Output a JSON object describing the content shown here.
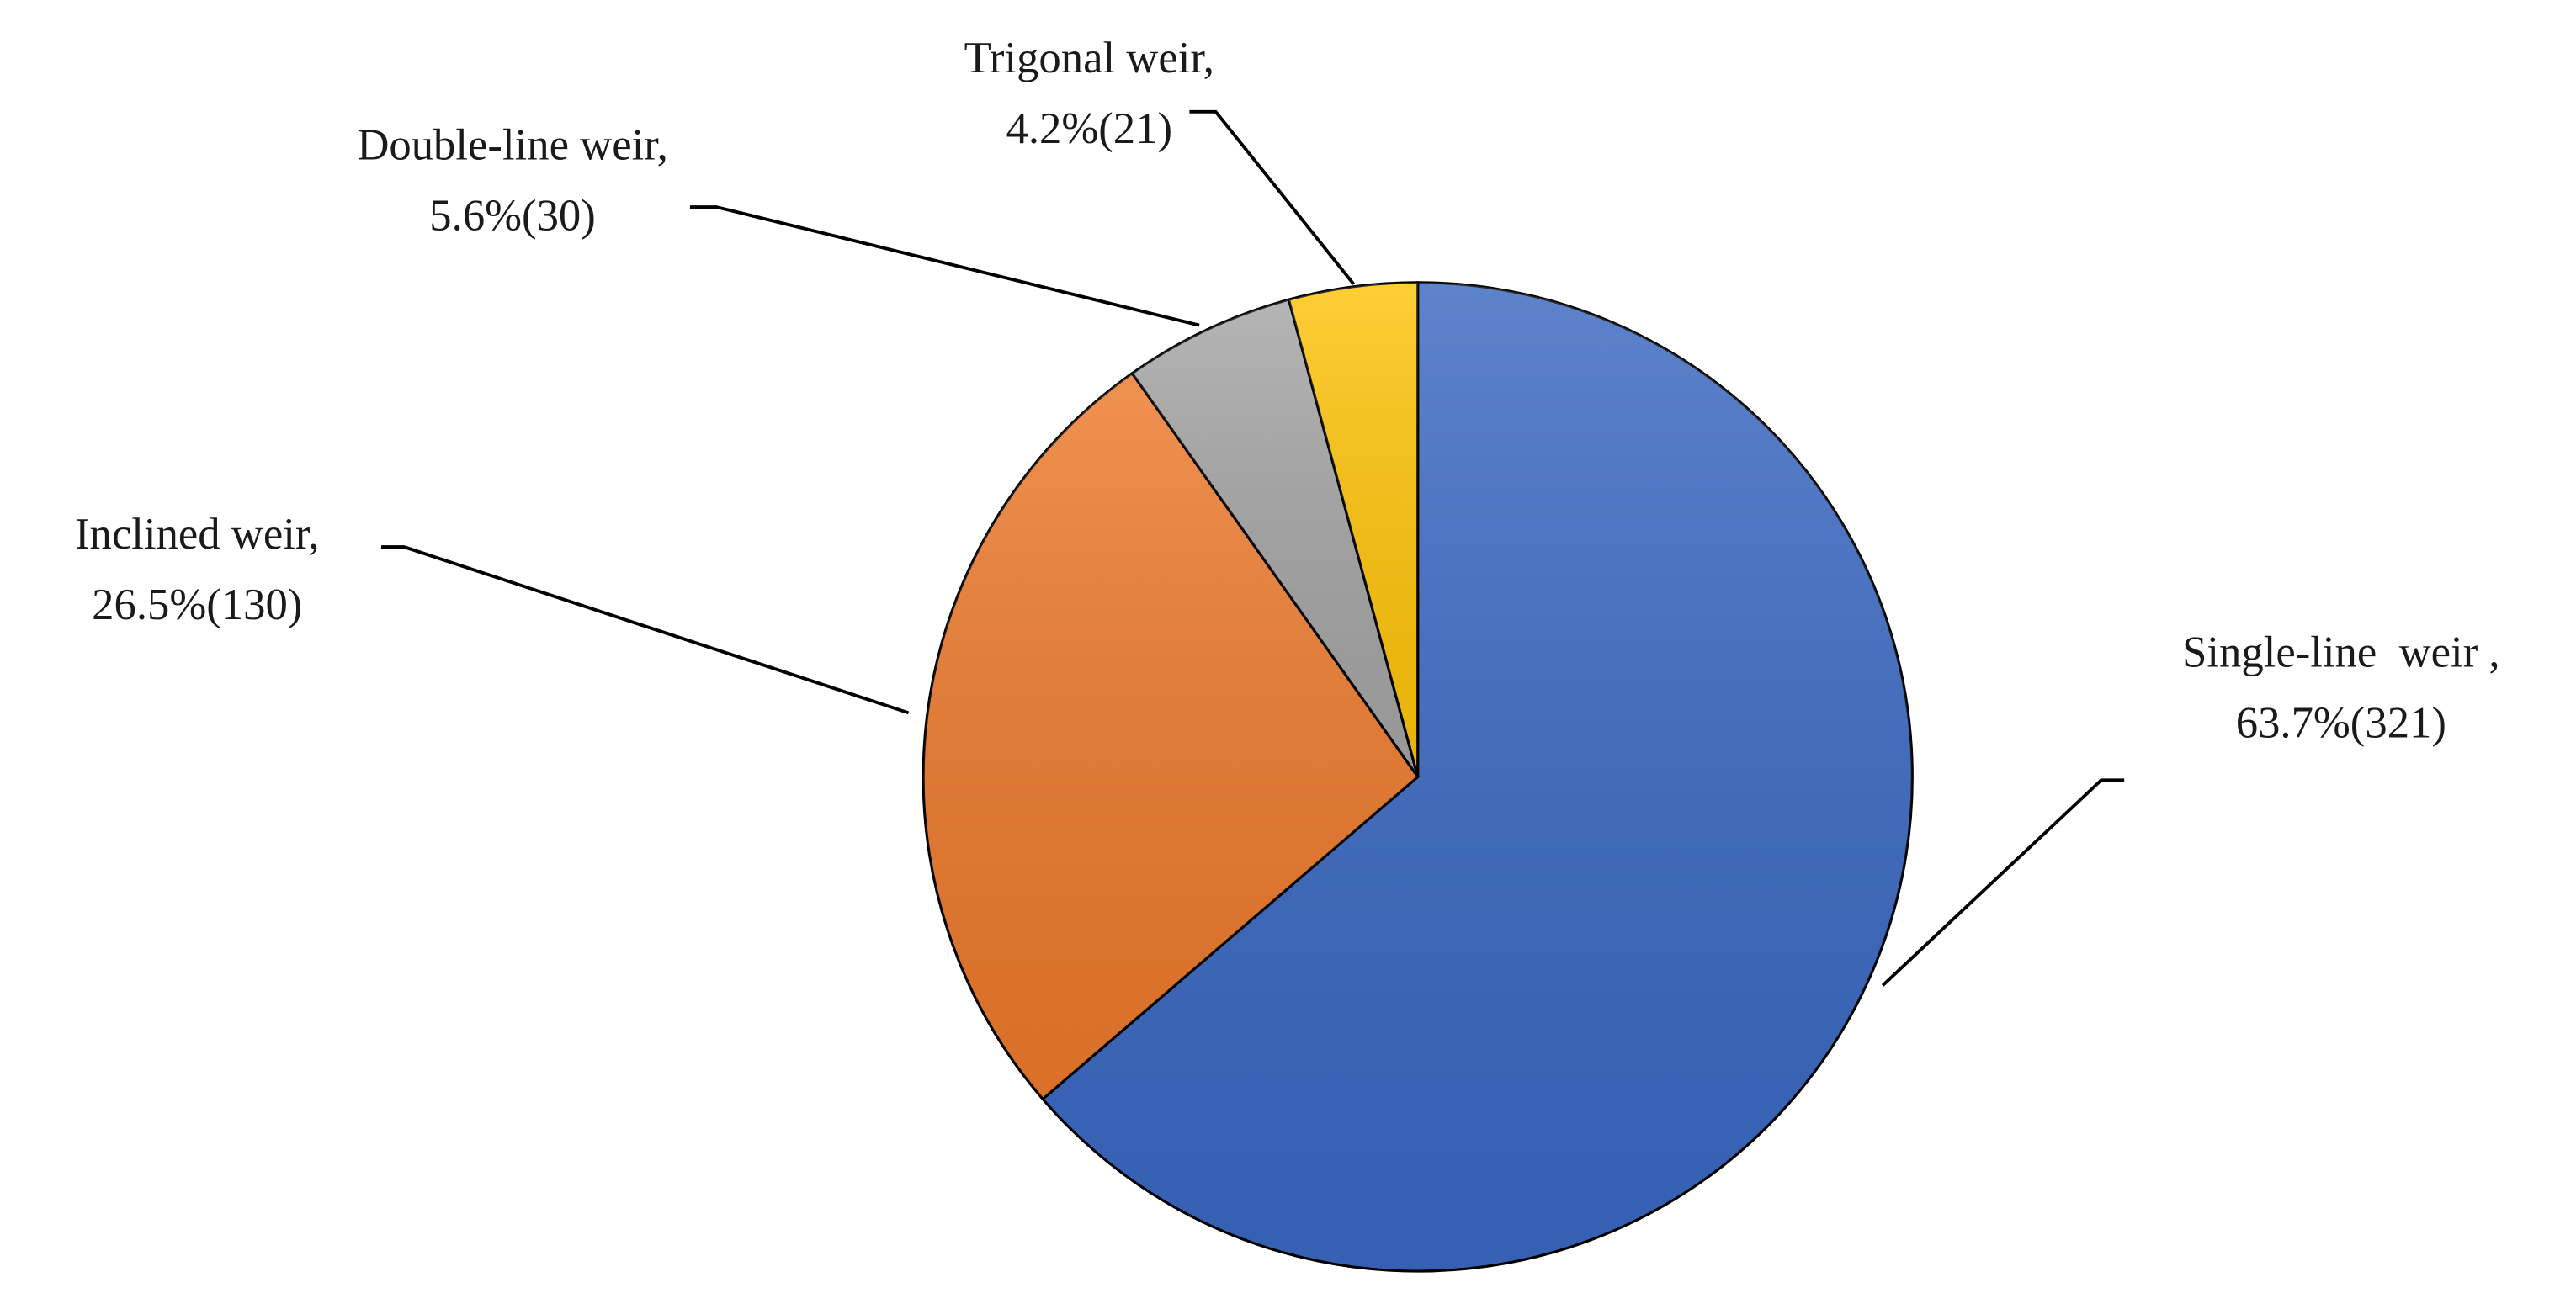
{
  "chart_data": {
    "type": "pie",
    "categories": [
      "Single-line  weir ,",
      "Inclined weir,",
      "Double-line weir,",
      "Trigonal weir,"
    ],
    "values": [
      63.7,
      26.5,
      5.6,
      4.2
    ],
    "value_labels": [
      "63.7%(321)",
      "26.5%(130)",
      "5.6%(30)",
      "4.2%(21)"
    ],
    "colors": [
      "#3a68c2",
      "#ed7a2c",
      "#a5a5a5",
      "#ffc40a"
    ]
  }
}
